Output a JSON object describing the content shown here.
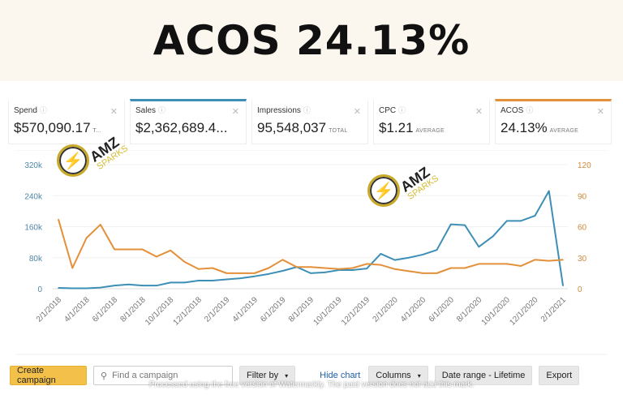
{
  "hero": {
    "title": "ACOS 24.13%"
  },
  "metrics": [
    {
      "label": "Spend",
      "value": "$570,090.17",
      "suffix": "T..."
    },
    {
      "label": "Sales",
      "value": "$2,362,689.4...",
      "suffix": ""
    },
    {
      "label": "Impressions",
      "value": "95,548,037",
      "suffix": "TOTAL"
    },
    {
      "label": "CPC",
      "value": "$1.21",
      "suffix": "AVERAGE"
    },
    {
      "label": "ACOS",
      "value": "24.13%",
      "suffix": "AVERAGE"
    }
  ],
  "logo": {
    "line1": "AMZ",
    "line2": "SPARKS"
  },
  "toolbar": {
    "create": "Create campaign",
    "search_placeholder": "Find a campaign",
    "filter": "Filter by",
    "hide_chart": "Hide chart",
    "columns": "Columns",
    "date_range": "Date range - Lifetime",
    "export": "Export"
  },
  "watermark": "Processed using the free version of Watermarkly. The paid version does not add this mark.",
  "colors": {
    "sales": "#3d8fb6",
    "acos": "#e3903a",
    "accent_button": "#f3c04a"
  },
  "chart_data": {
    "type": "line",
    "grid": true,
    "x_ticks": [
      "2/1/2018",
      "4/1/2018",
      "6/1/2018",
      "8/1/2018",
      "10/1/2018",
      "12/1/2018",
      "2/1/2019",
      "4/1/2019",
      "6/1/2019",
      "8/1/2019",
      "10/1/2019",
      "12/1/2019",
      "2/1/2020",
      "4/1/2020",
      "6/1/2020",
      "8/1/2020",
      "10/1/2020",
      "12/1/2020",
      "2/1/2021"
    ],
    "y_left": {
      "ticks": [
        "0",
        "80k",
        "160k",
        "240k",
        "320k"
      ],
      "range": [
        0,
        320000
      ]
    },
    "y_right": {
      "ticks": [
        "0",
        "30",
        "60",
        "90",
        "120"
      ],
      "range": [
        0,
        120
      ]
    },
    "x_start": "2/1/2018",
    "x_interval": "monthly",
    "series": [
      {
        "key": "sales",
        "axis": "left",
        "color": "#3d8fb6",
        "values": [
          2000,
          1000,
          1000,
          3000,
          8000,
          11000,
          8000,
          8000,
          16000,
          16000,
          21000,
          21000,
          24000,
          27000,
          32000,
          38000,
          46000,
          56000,
          40000,
          42000,
          48000,
          48000,
          52000,
          90000,
          74000,
          80000,
          88000,
          100000,
          166000,
          164000,
          108000,
          135000,
          175000,
          175000,
          188000,
          252000,
          8000
        ]
      },
      {
        "key": "acos",
        "axis": "right",
        "color": "#e3903a",
        "values": [
          67,
          20,
          49,
          62,
          38,
          38,
          38,
          31,
          37,
          26,
          19,
          20,
          15,
          15,
          15,
          20,
          28,
          21,
          21,
          20,
          19,
          20,
          24,
          23,
          19,
          17,
          15,
          15,
          20,
          20,
          24,
          24,
          24,
          22,
          28,
          27,
          28
        ]
      }
    ]
  }
}
